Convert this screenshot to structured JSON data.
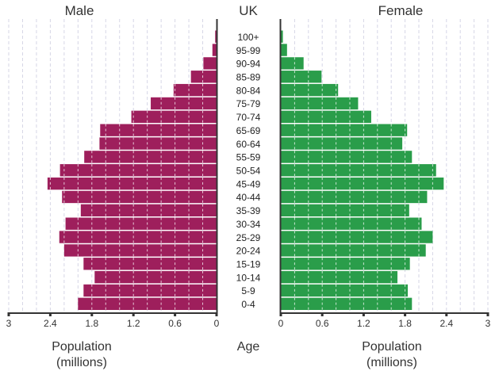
{
  "colors": {
    "male": "#9e1f5c",
    "female": "#2a9d4a",
    "axis": "#333333",
    "grid": "#d6d6e6"
  },
  "chart_data": {
    "type": "bar",
    "subtype": "population-pyramid",
    "title": "UK",
    "left_title": "Male",
    "right_title": "Female",
    "center_label": "Age",
    "left_xlabel": [
      "Population",
      "(millions)"
    ],
    "right_xlabel": [
      "Population",
      "(millions)"
    ],
    "xlim": [
      0,
      3
    ],
    "x_ticks": [
      0,
      0.6,
      1.2,
      1.8,
      2.4,
      3
    ],
    "x_tick_labels": [
      "0",
      "0.6",
      "1.2",
      "1.8",
      "2.4",
      "3"
    ],
    "grid": true,
    "categories": [
      "100+",
      "95-99",
      "90-94",
      "85-89",
      "80-84",
      "75-79",
      "70-74",
      "65-69",
      "60-64",
      "55-59",
      "50-54",
      "45-49",
      "40-44",
      "35-39",
      "30-34",
      "25-29",
      "20-24",
      "15-19",
      "10-14",
      "5-9",
      "0-4"
    ],
    "series": [
      {
        "name": "Male",
        "values": [
          0.02,
          0.06,
          0.19,
          0.37,
          0.62,
          0.95,
          1.23,
          1.68,
          1.69,
          1.91,
          2.26,
          2.44,
          2.23,
          1.96,
          2.18,
          2.27,
          2.2,
          1.92,
          1.76,
          1.92,
          2.0
        ]
      },
      {
        "name": "Female",
        "values": [
          0.03,
          0.09,
          0.33,
          0.59,
          0.83,
          1.12,
          1.31,
          1.83,
          1.76,
          1.9,
          2.25,
          2.36,
          2.12,
          1.86,
          2.04,
          2.2,
          2.1,
          1.87,
          1.69,
          1.84,
          1.9
        ]
      }
    ]
  }
}
